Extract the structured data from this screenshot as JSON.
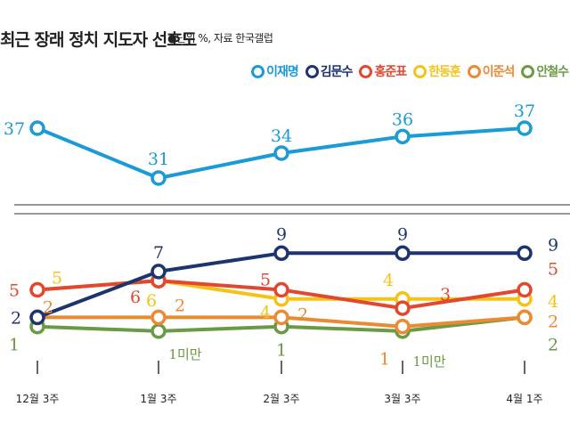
{
  "title": "최근 장래 정치 지도자 선호도",
  "subtitle": "●단위 %, 자료 한국갤럽",
  "chart_data": {
    "type": "line",
    "title": "최근 장래 정치 지도자 선호도",
    "unit": "%",
    "source": "한국갤럽",
    "categories": [
      "12월 3주",
      "1월 3주",
      "2월 3주",
      "3월 3주",
      "4월 1주"
    ],
    "legend_position": "top-right",
    "grid": false,
    "series": [
      {
        "name": "이재명",
        "color": "#1a9ad6",
        "values": [
          37,
          31,
          34,
          36,
          37
        ],
        "labels": [
          "37",
          "31",
          "34",
          "36",
          "37"
        ]
      },
      {
        "name": "김문수",
        "color": "#1c3470",
        "values": [
          2,
          7,
          9,
          9,
          9
        ],
        "labels": [
          "2",
          "7",
          "9",
          "9",
          "9"
        ]
      },
      {
        "name": "홍준표",
        "color": "#e2472f",
        "values": [
          5,
          6,
          5,
          3,
          5
        ],
        "labels": [
          "5",
          "6",
          "5",
          "3",
          "5"
        ]
      },
      {
        "name": "한동훈",
        "color": "#f4c31a",
        "values": [
          5,
          6,
          4,
          4,
          4
        ],
        "labels": [
          "5",
          "6",
          "4",
          "4",
          "4"
        ]
      },
      {
        "name": "이준석",
        "color": "#ec8a34",
        "values": [
          2,
          2,
          2,
          1,
          2
        ],
        "labels": [
          "2",
          "2",
          "2",
          "1",
          "2"
        ]
      },
      {
        "name": "안철수",
        "color": "#6b9a45",
        "values": [
          1,
          0.5,
          1,
          0.5,
          2
        ],
        "labels": [
          "1",
          "1미만",
          "1",
          "1미만",
          "2"
        ]
      }
    ]
  }
}
